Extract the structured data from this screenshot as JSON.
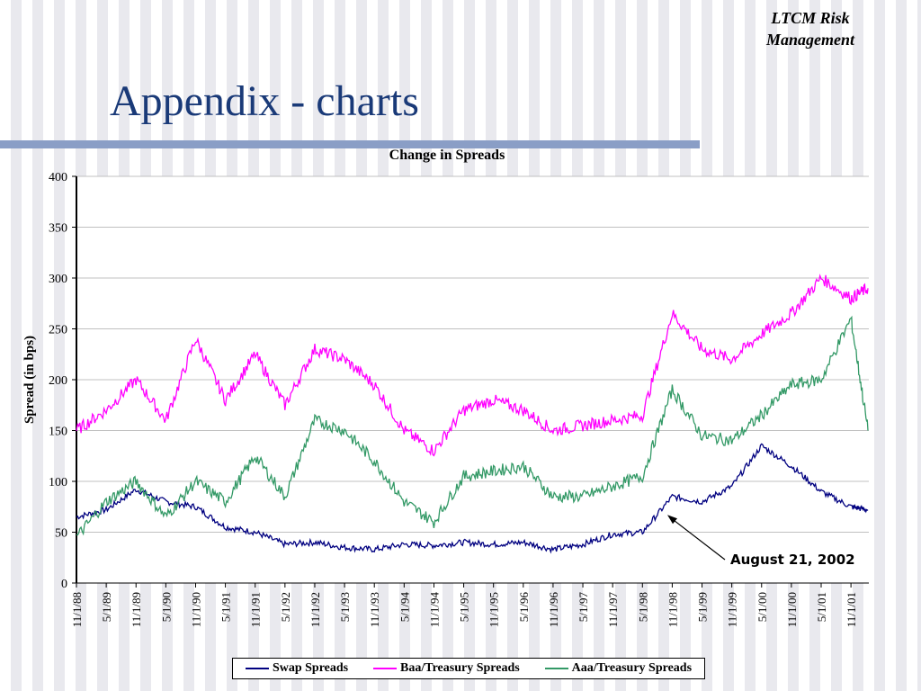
{
  "header": {
    "corner_line1": "LTCM Risk",
    "corner_line2": "Management",
    "title": "Appendix - charts"
  },
  "colors": {
    "title": "#1a3a78",
    "rule": "#8a9ec6",
    "swap": "#000080",
    "baa": "#ff00ff",
    "aaa": "#339966"
  },
  "chart_data": {
    "type": "line",
    "title": "Change in Spreads",
    "ylabel": "Spread (in bps)",
    "xlabel": "",
    "ylim": [
      0,
      400
    ],
    "yticks": [
      0,
      50,
      100,
      150,
      200,
      250,
      300,
      350,
      400
    ],
    "grid": true,
    "x_tick_labels": [
      "11/1/88",
      "5/1/89",
      "11/1/89",
      "5/1/90",
      "11/1/90",
      "5/1/91",
      "11/1/91",
      "5/1/92",
      "11/1/92",
      "5/1/93",
      "11/1/93",
      "5/1/94",
      "11/1/94",
      "5/1/95",
      "11/1/95",
      "5/1/96",
      "11/1/96",
      "5/1/97",
      "11/1/97",
      "5/1/98",
      "11/1/98",
      "5/1/99",
      "11/1/99",
      "5/1/00",
      "11/1/00",
      "5/1/01",
      "11/1/01"
    ],
    "x": [
      "11/1/88",
      "5/1/89",
      "11/1/89",
      "5/1/90",
      "11/1/90",
      "5/1/91",
      "11/1/91",
      "5/1/92",
      "11/1/92",
      "5/1/93",
      "11/1/93",
      "5/1/94",
      "11/1/94",
      "5/1/95",
      "11/1/95",
      "5/1/96",
      "11/1/96",
      "5/1/97",
      "11/1/97",
      "5/1/98",
      "11/1/98",
      "5/1/99",
      "11/1/99",
      "5/1/00",
      "11/1/00",
      "5/1/01",
      "11/1/01",
      "4/1/02"
    ],
    "series": [
      {
        "name": "Swap Spreads",
        "color": "#000080",
        "values": [
          65,
          72,
          92,
          80,
          75,
          55,
          50,
          38,
          40,
          35,
          33,
          38,
          37,
          40,
          38,
          40,
          33,
          38,
          48,
          50,
          85,
          80,
          95,
          135,
          115,
          90,
          75,
          72
        ]
      },
      {
        "name": "Baa/Treasury Spreads",
        "color": "#ff00ff",
        "values": [
          150,
          170,
          200,
          160,
          240,
          180,
          225,
          175,
          230,
          220,
          195,
          150,
          130,
          170,
          180,
          170,
          150,
          155,
          160,
          165,
          265,
          230,
          220,
          245,
          265,
          300,
          280,
          290
        ]
      },
      {
        "name": "Aaa/Treasury Spreads",
        "color": "#339966",
        "values": [
          45,
          80,
          100,
          65,
          100,
          80,
          125,
          85,
          160,
          150,
          120,
          80,
          60,
          105,
          110,
          115,
          85,
          85,
          95,
          105,
          190,
          145,
          140,
          165,
          195,
          200,
          260,
          150
        ]
      }
    ],
    "annotation": "August 21, 2002",
    "legend_placement": "bottom"
  }
}
